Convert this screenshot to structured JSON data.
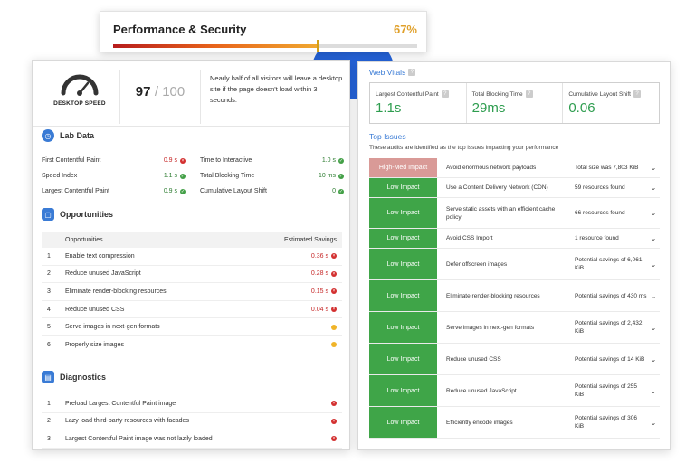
{
  "performance_card": {
    "title": "Performance & Security",
    "percent_label": "67%",
    "progress": 0.67
  },
  "speed": {
    "label": "DESKTOP SPEED",
    "score": "97",
    "score_total": "/ 100",
    "note": "Nearly half of all visitors will leave a desktop site if the page doesn't load within 3 seconds."
  },
  "lab_data": {
    "title": "Lab Data",
    "rows": [
      {
        "left_label": "First Contentful Paint",
        "left_value": "0.9 s",
        "left_status": "red",
        "right_label": "Time to Interactive",
        "right_value": "1.0 s",
        "right_status": "green"
      },
      {
        "left_label": "Speed Index",
        "left_value": "1.1 s",
        "left_status": "green",
        "right_label": "Total Blocking Time",
        "right_value": "10 ms",
        "right_status": "green"
      },
      {
        "left_label": "Largest Contentful Paint",
        "left_value": "0.9 s",
        "left_status": "green",
        "right_label": "Cumulative Layout Shift",
        "right_value": "0",
        "right_status": "green"
      }
    ]
  },
  "opportunities": {
    "title": "Opportunities",
    "col_name": "Opportunities",
    "col_savings": "Estimated Savings",
    "rows": [
      {
        "num": "1",
        "name": "Enable text compression",
        "savings": "0.36 s",
        "status": "red"
      },
      {
        "num": "2",
        "name": "Reduce unused JavaScript",
        "savings": "0.28 s",
        "status": "red"
      },
      {
        "num": "3",
        "name": "Eliminate render-blocking resources",
        "savings": "0.15 s",
        "status": "red"
      },
      {
        "num": "4",
        "name": "Reduce unused CSS",
        "savings": "0.04 s",
        "status": "red"
      },
      {
        "num": "5",
        "name": "Serve images in next-gen formats",
        "savings": "",
        "status": "yellow"
      },
      {
        "num": "6",
        "name": "Properly size images",
        "savings": "",
        "status": "yellow"
      }
    ]
  },
  "diagnostics": {
    "title": "Diagnostics",
    "rows": [
      {
        "num": "1",
        "name": "Preload Largest Contentful Paint image",
        "status": "red"
      },
      {
        "num": "2",
        "name": "Lazy load third-party resources with facades",
        "status": "red"
      },
      {
        "num": "3",
        "name": "Largest Contentful Paint image was not lazily loaded",
        "status": "red"
      }
    ]
  },
  "web_vitals": {
    "title": "Web Vitals",
    "items": [
      {
        "label": "Largest Contentful Paint",
        "value": "1.1s"
      },
      {
        "label": "Total Blocking Time",
        "value": "29ms"
      },
      {
        "label": "Cumulative Layout Shift",
        "value": "0.06"
      }
    ]
  },
  "top_issues": {
    "title": "Top Issues",
    "subtitle": "These audits are identified as the top issues impacting your performance",
    "rows": [
      {
        "impact": "High-Med Impact",
        "level": "high",
        "name": "Avoid enormous network payloads",
        "detail": "Total size was 7,803 KiB"
      },
      {
        "impact": "Low Impact",
        "level": "low",
        "name": "Use a Content Delivery Network (CDN)",
        "detail": "59 resources found"
      },
      {
        "impact": "Low Impact",
        "level": "low",
        "name": "Serve static assets with an efficient cache policy",
        "detail": "66 resources found"
      },
      {
        "impact": "Low Impact",
        "level": "low",
        "name": "Avoid CSS Import",
        "detail": "1 resource found"
      },
      {
        "impact": "Low Impact",
        "level": "low",
        "name": "Defer offscreen images",
        "detail": "Potential savings of 6,061 KiB"
      },
      {
        "impact": "Low Impact",
        "level": "low",
        "name": "Eliminate render-blocking resources",
        "detail": "Potential savings of 430 ms"
      },
      {
        "impact": "Low Impact",
        "level": "low",
        "name": "Serve images in next-gen formats",
        "detail": "Potential savings of 2,432 KiB"
      },
      {
        "impact": "Low Impact",
        "level": "low",
        "name": "Reduce unused CSS",
        "detail": "Potential savings of 14 KiB"
      },
      {
        "impact": "Low Impact",
        "level": "low",
        "name": "Reduce unused JavaScript",
        "detail": "Potential savings of 255 KiB"
      },
      {
        "impact": "Low Impact",
        "level": "low",
        "name": "Efficiently encode images",
        "detail": "Potential savings of 306 KiB"
      }
    ]
  },
  "colors": {
    "accent": "#3a7bd5",
    "good": "#2e9d4f",
    "bad": "#d32f2f",
    "warn": "#f0b429",
    "low_impact": "#3fa548",
    "high_impact": "#d99a97"
  }
}
